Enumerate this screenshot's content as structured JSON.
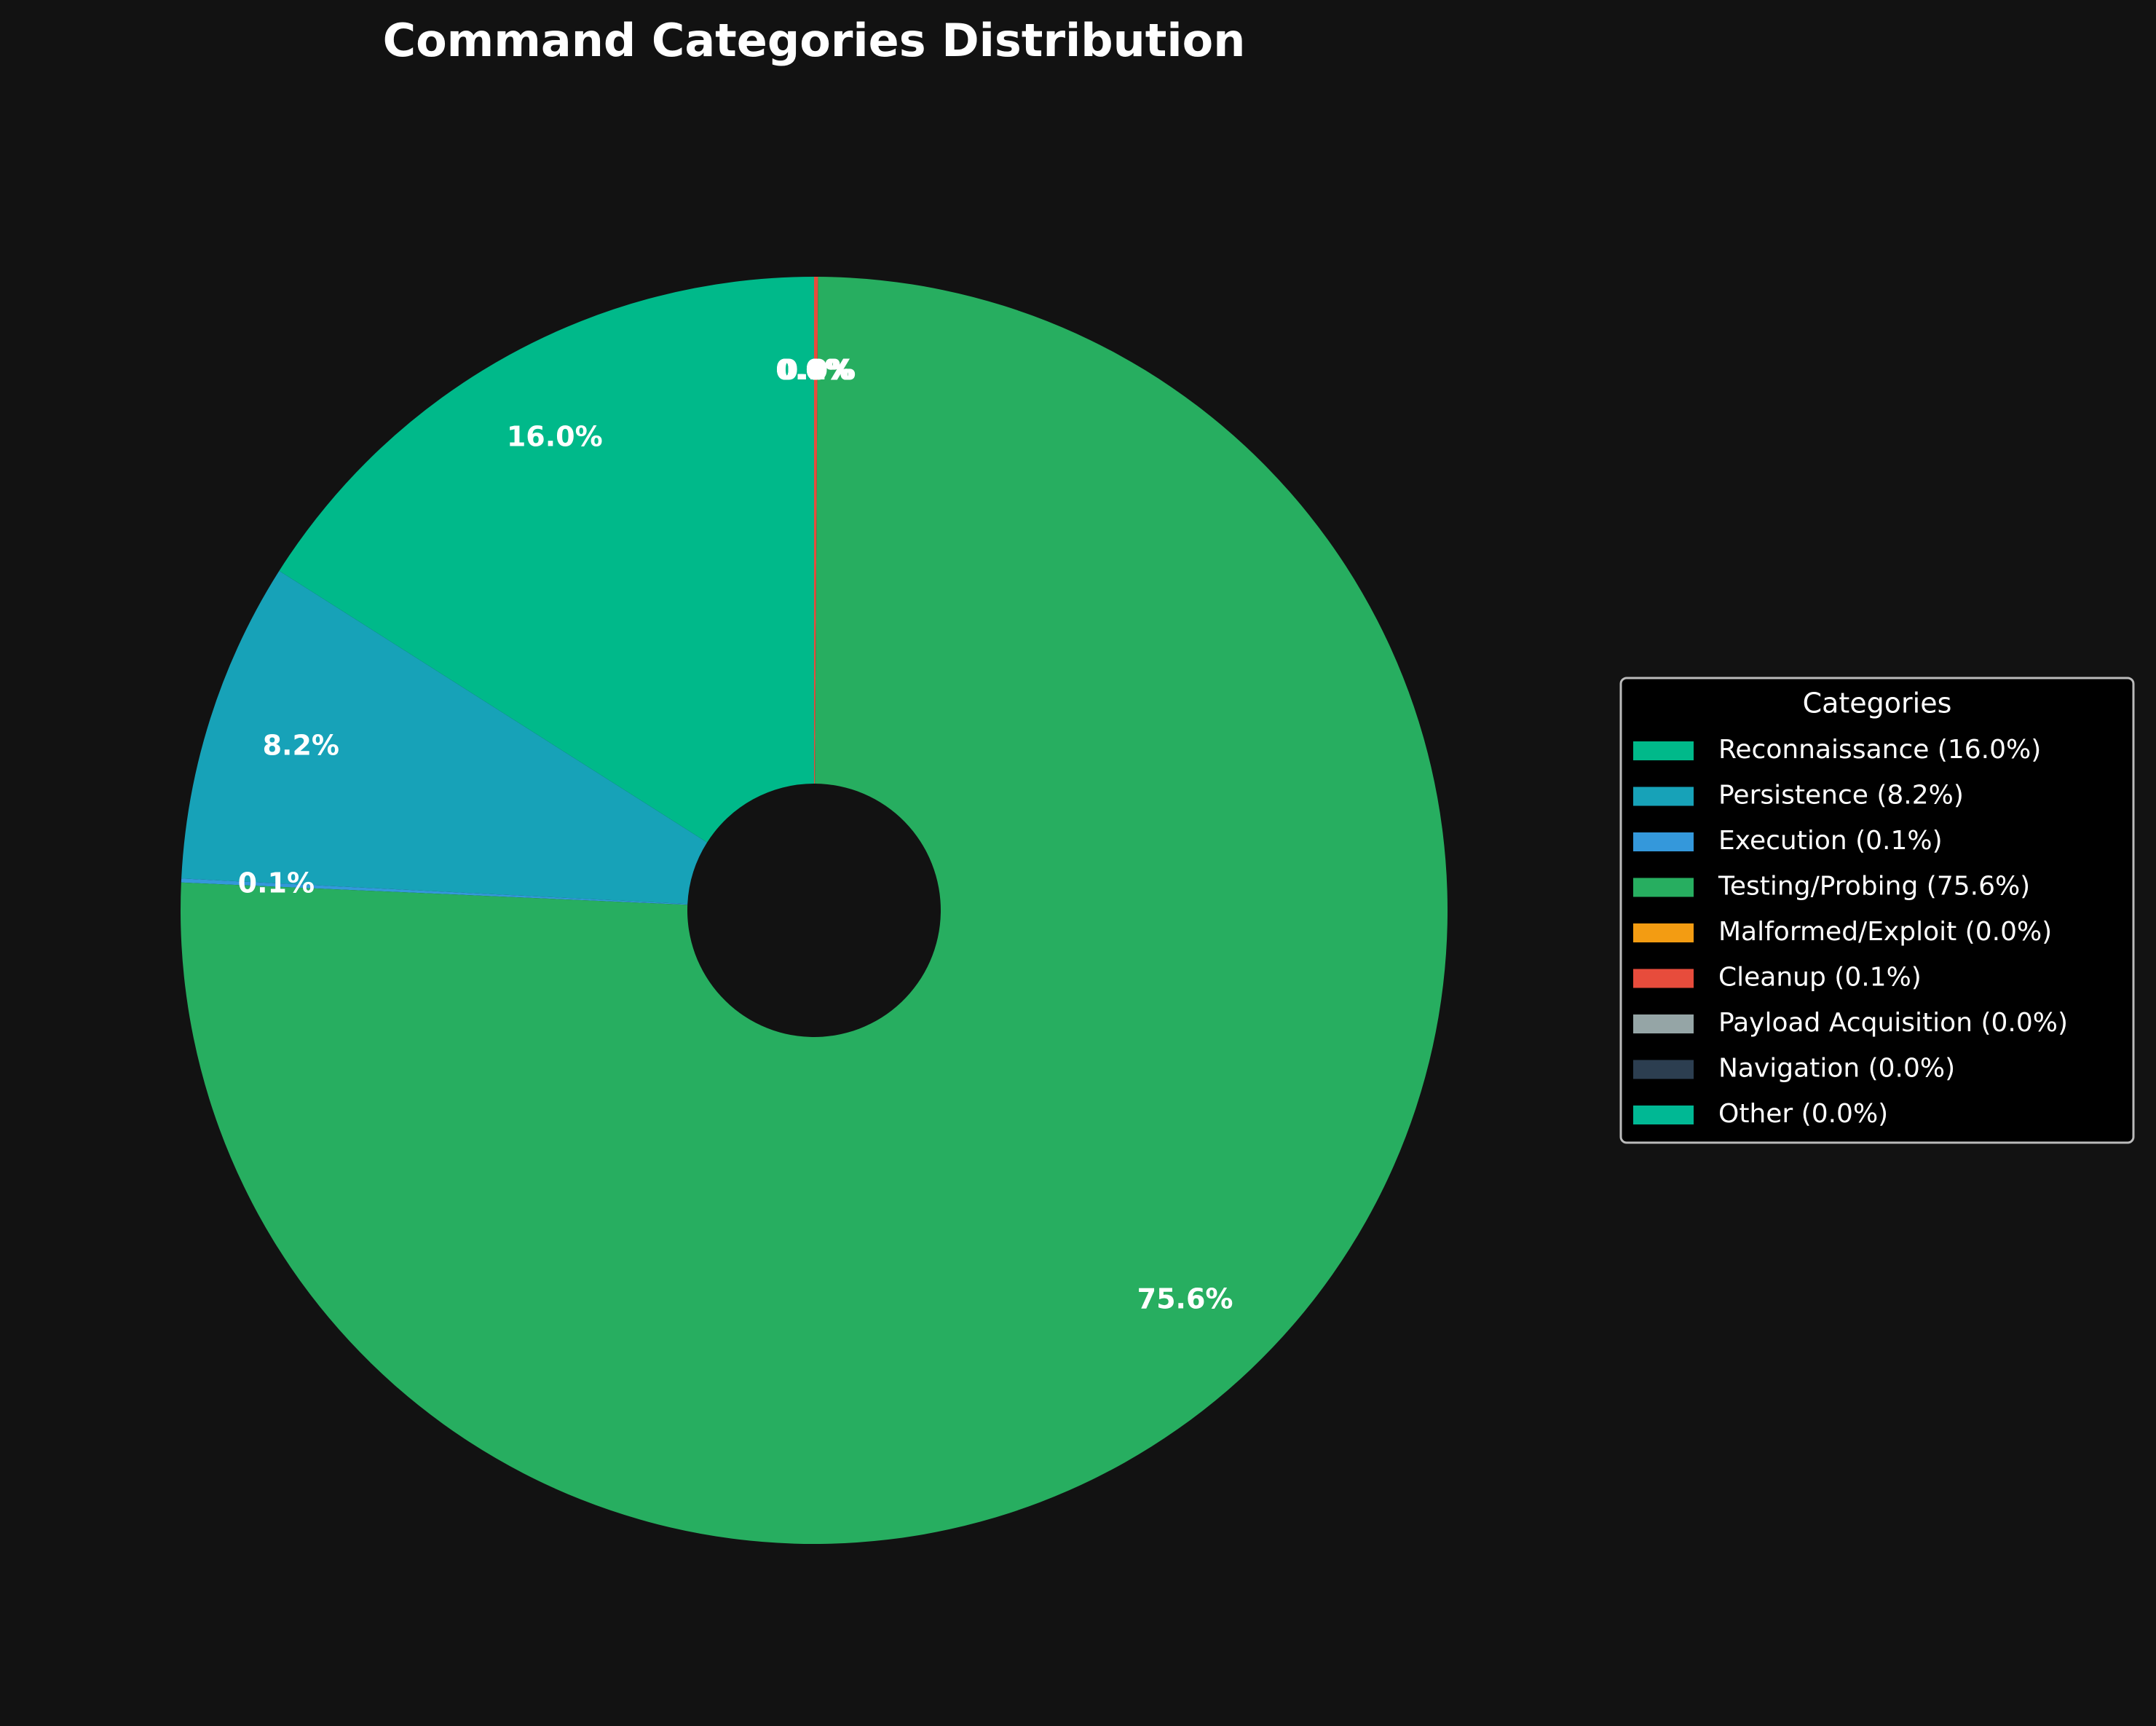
{
  "chart_data": {
    "type": "pie",
    "title": "Command Categories Distribution",
    "legend_title": "Categories",
    "legend": "right",
    "categories": [
      "Reconnaissance (16.0%)",
      "Persistence (8.2%)",
      "Execution (0.1%)",
      "Testing/Probing (75.6%)",
      "Malformed/Exploit (0.0%)",
      "Cleanup (0.1%)",
      "Payload Acquisition (0.0%)",
      "Navigation (0.0%)",
      "Other (0.0%)"
    ],
    "values": [
      16.0,
      8.2,
      0.1,
      75.6,
      0.0,
      0.1,
      0.0,
      0.0,
      0.0
    ],
    "value_labels": [
      "16.0%",
      "8.2%",
      "0.1%",
      "75.6%",
      "0.0%",
      "0.1%",
      "0.0%",
      "0.0%",
      "0.0%"
    ],
    "colors": [
      "#00b98a",
      "#17a2b8",
      "#3498db",
      "#27ae60",
      "#f39c12",
      "#e74c3c",
      "#95a5a6",
      "#2c3e50",
      "#00b894"
    ]
  }
}
